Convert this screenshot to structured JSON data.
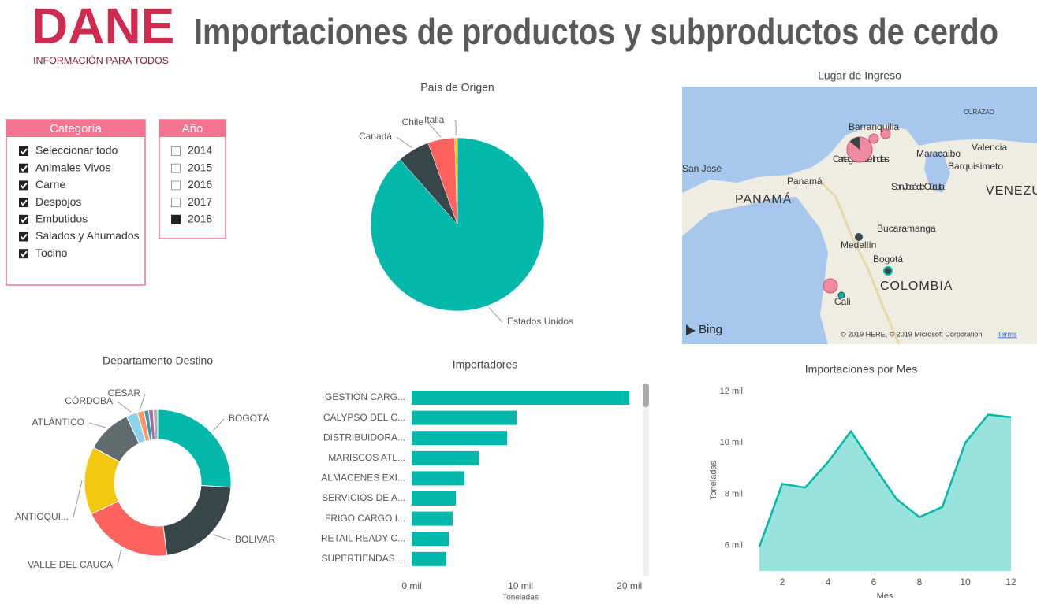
{
  "header": {
    "logo": "DANE",
    "tagline": "INFORMACIÓN PARA TODOS",
    "title": "Importaciones de productos y subproductos de cerdo"
  },
  "slicers": [
    {
      "title": "Categoría",
      "items": [
        {
          "label": "Seleccionar todo",
          "checked": true
        },
        {
          "label": "Animales Vivos",
          "checked": true
        },
        {
          "label": "Carne",
          "checked": true
        },
        {
          "label": "Despojos",
          "checked": true
        },
        {
          "label": "Embutidos",
          "checked": true
        },
        {
          "label": "Salados y Ahumados",
          "checked": true
        },
        {
          "label": "Tocino",
          "checked": true
        }
      ]
    },
    {
      "title": "Año",
      "items": [
        {
          "label": "2014",
          "checked": false
        },
        {
          "label": "2015",
          "checked": false
        },
        {
          "label": "2016",
          "checked": false
        },
        {
          "label": "2017",
          "checked": false
        },
        {
          "label": "2018",
          "checked": true
        }
      ]
    }
  ],
  "map": {
    "title": "Lugar de Ingreso",
    "labels": [
      "CURAZAO",
      "Barranquilla",
      "Cartagena de Indias",
      "Maracaibo",
      "Valencia",
      "Barquisimeto",
      "San José",
      "Panamá",
      "PANAMÁ",
      "San José de Cúcuta",
      "VENEZU",
      "Bucaramanga",
      "Medellín",
      "Bogotá",
      "COLOMBIA",
      "Cali"
    ],
    "brand": "Bing",
    "copyright": "© 2019 HERE, © 2019 Microsoft Corporation",
    "terms": "Terms"
  },
  "chart_data": [
    {
      "type": "pie",
      "title": "País de Origen",
      "categories": [
        "Estados Unidos",
        "Canadá",
        "Chile",
        "Italia"
      ],
      "values": [
        88.5,
        6,
        5,
        0.5
      ],
      "colors": [
        "#01b8aa",
        "#374649",
        "#fd625e",
        "#f2c80f"
      ]
    },
    {
      "type": "donut",
      "title": "Departamento Destino",
      "categories": [
        "BOGOTÁ",
        "BOLIVAR",
        "VALLE DEL CAUCA",
        "ANTIOQUI...",
        "ATLÁNTICO",
        "CÓRDOBA",
        "CESAR",
        null,
        null,
        null
      ],
      "values": [
        26,
        22,
        20,
        15,
        10,
        2.5,
        1.5,
        1,
        1,
        1
      ],
      "colors": [
        "#01b8aa",
        "#374649",
        "#fd625e",
        "#f2c80f",
        "#5f6b6d",
        "#8ad4eb",
        "#fe9666",
        "#3599b8",
        "#a66999",
        "#b0b0b0"
      ]
    },
    {
      "type": "hbar",
      "title": "Importadores",
      "x_label": "Toneladas",
      "categories": [
        "GESTION CARG...",
        "CALYPSO DEL C...",
        "DISTRIBUIDORA...",
        "MARISCOS ATL...",
        "ALMACENES EXI...",
        "SERVICIOS DE A...",
        "FRIGO CARGO I...",
        "RETAIL READY C...",
        "SUPERTIENDAS ..."
      ],
      "values": [
        20000,
        9640,
        8770,
        6160,
        4860,
        4060,
        3770,
        3410,
        3190
      ],
      "color": "#01b8aa",
      "xlim": [
        0,
        21000
      ],
      "xticks": [
        {
          "value": 0,
          "label": "0 mil"
        },
        {
          "value": 10000,
          "label": "10 mil"
        },
        {
          "value": 20000,
          "label": "20 mil"
        }
      ]
    },
    {
      "type": "area",
      "title": "Importaciones por Mes",
      "x_label": "Mes",
      "y_label": "Toneladas",
      "x": [
        1,
        2,
        3,
        4,
        5,
        6,
        7,
        8,
        9,
        10,
        11,
        12
      ],
      "values": [
        5950,
        8400,
        8250,
        9250,
        10450,
        9100,
        7800,
        7100,
        7500,
        10000,
        11100,
        11000
      ],
      "color": "#01b8aa",
      "grid": false,
      "xlim": [
        1,
        12
      ],
      "xticks": [
        2,
        4,
        6,
        8,
        10,
        12
      ],
      "ylim": [
        5000,
        12500
      ],
      "yticks": [
        {
          "value": 6000,
          "label": "6 mil"
        },
        {
          "value": 8000,
          "label": "8 mil"
        },
        {
          "value": 10000,
          "label": "10 mil"
        },
        {
          "value": 12000,
          "label": "12 mil"
        }
      ]
    }
  ]
}
